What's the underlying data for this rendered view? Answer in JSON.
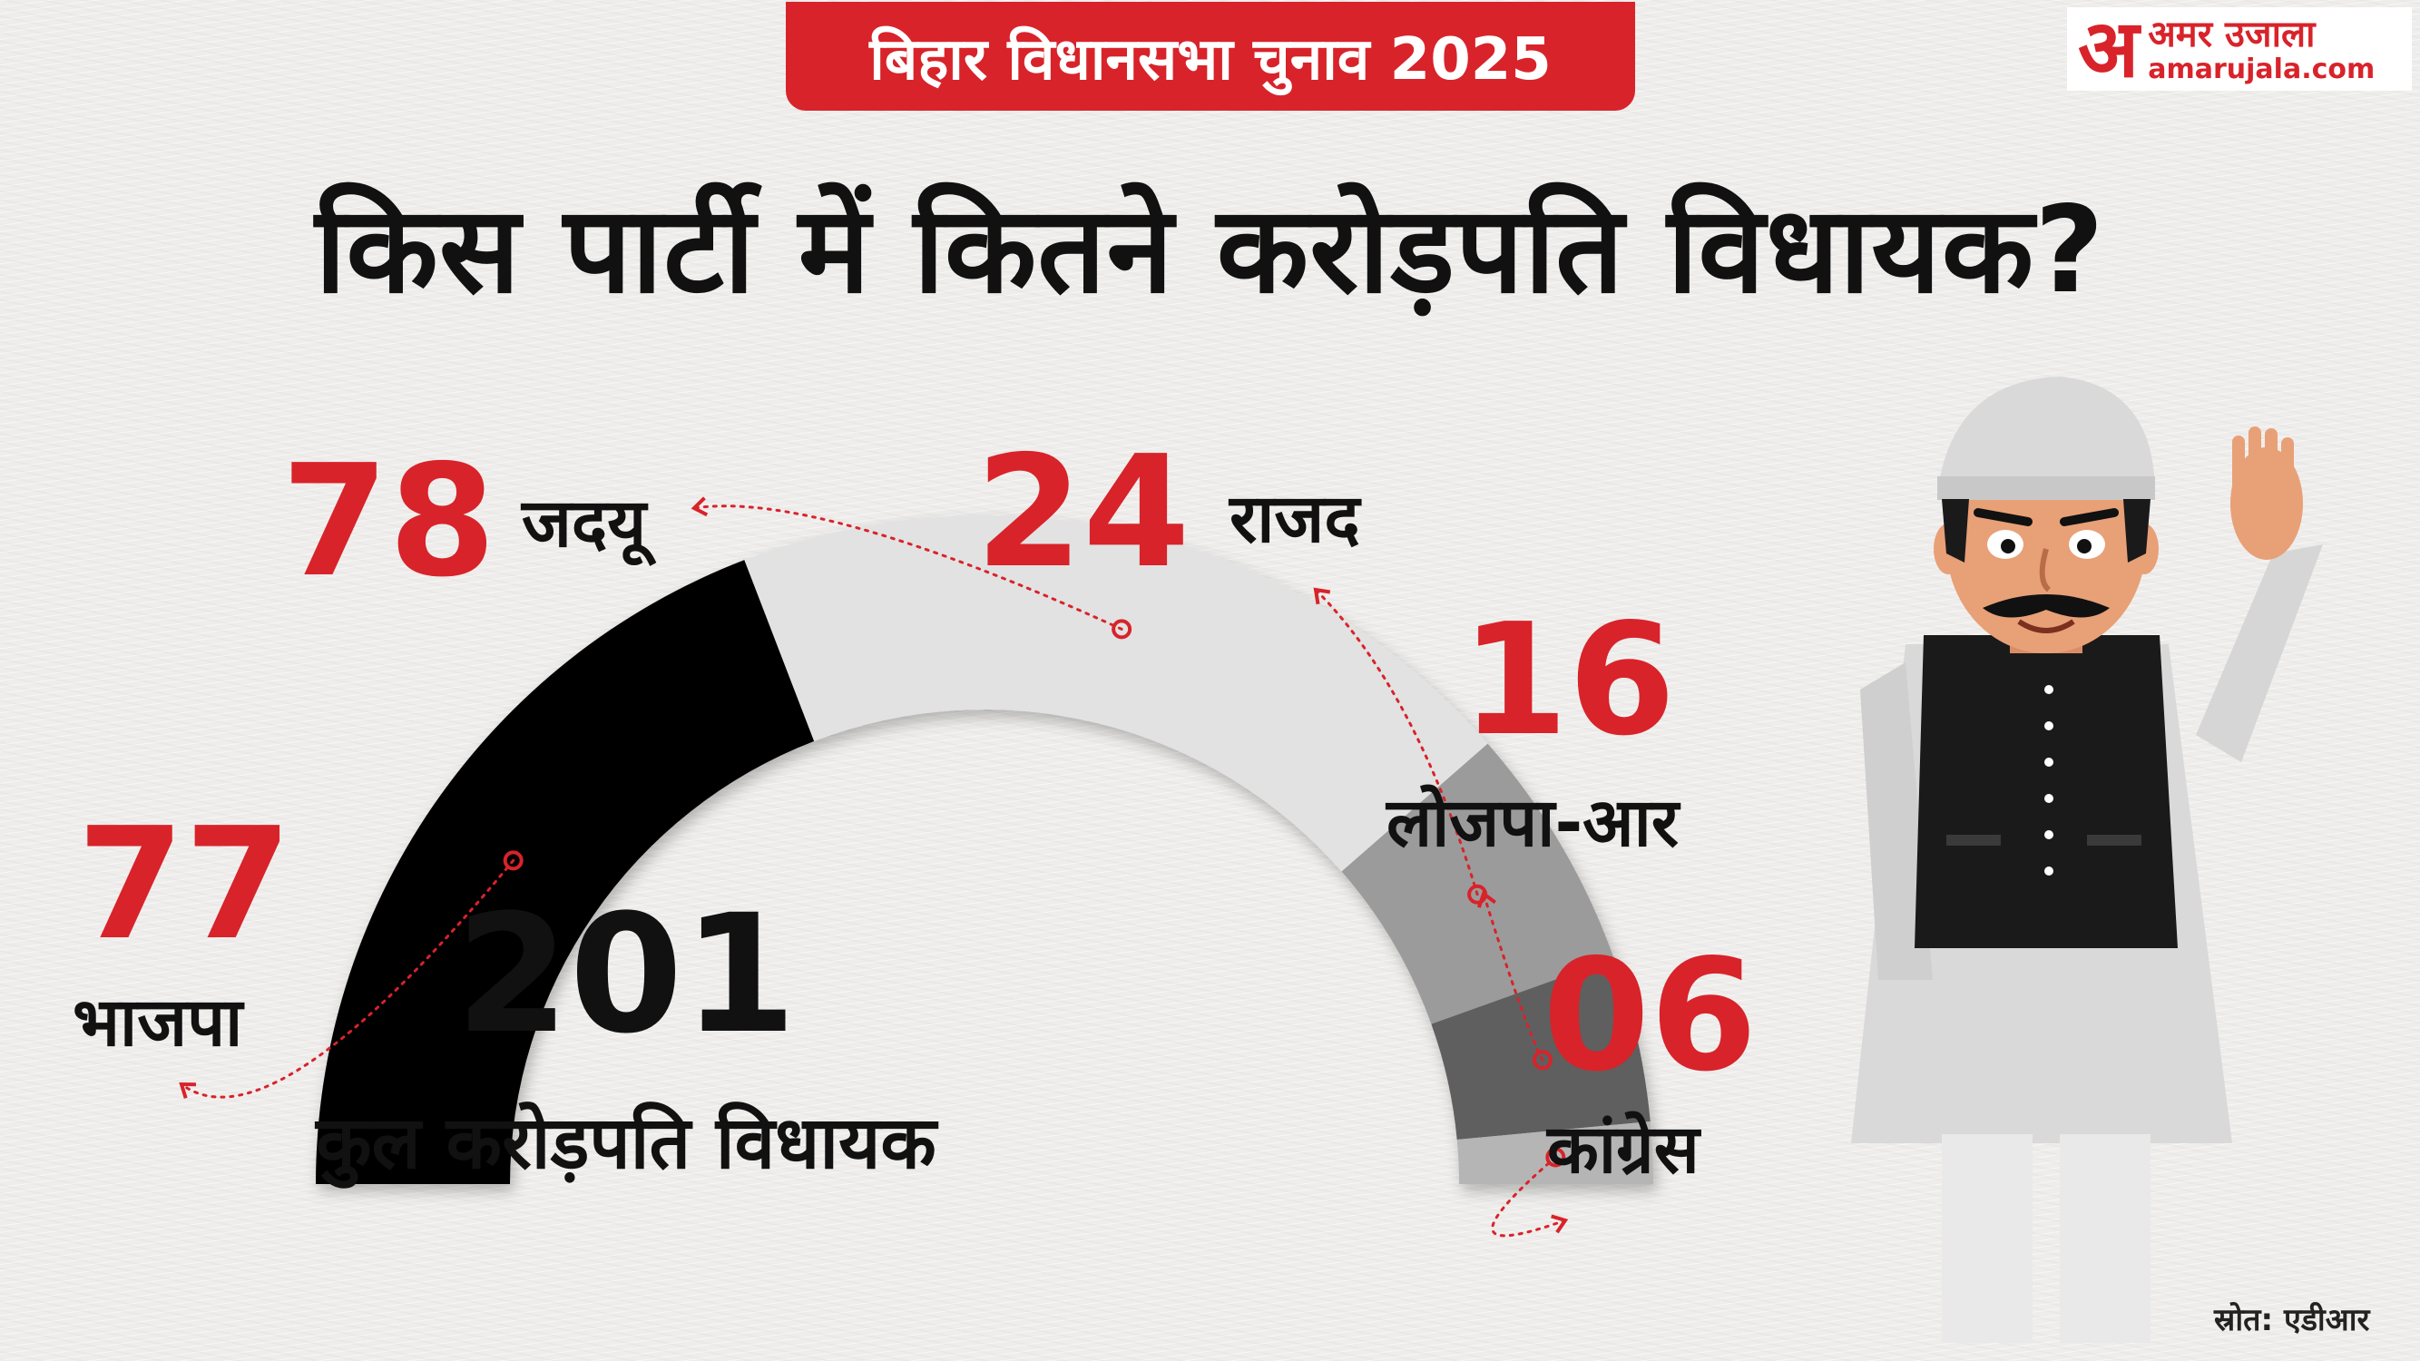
{
  "header": {
    "badge": "बिहार विधानसभा चुनाव 2025"
  },
  "brand": {
    "mark": "अ",
    "name": "अमर उजाला",
    "url": "amarujala.com"
  },
  "title": "किस पार्टी में कितने करोड़पति विधायक?",
  "chart_data": {
    "type": "gauge",
    "total": {
      "value": "201",
      "label": "कुल करोड़पति विधायक"
    },
    "segments": [
      {
        "party": "भाजपा",
        "value": 77,
        "display": "77",
        "color": "#000000"
      },
      {
        "party": "जदयू",
        "value": 78,
        "display": "78",
        "color": "#e2e2e2"
      },
      {
        "party": "राजद",
        "value": 24,
        "display": "24",
        "color": "#9b9b9b"
      },
      {
        "party": "लोजपा-आर",
        "value": 16,
        "display": "16",
        "color": "#5e5e5e"
      },
      {
        "party": "कांग्रेस",
        "value": 6,
        "display": "06",
        "color": "#b5b5b5"
      }
    ],
    "accent": "#d8232a"
  },
  "source": "स्रोत: एडीआर"
}
